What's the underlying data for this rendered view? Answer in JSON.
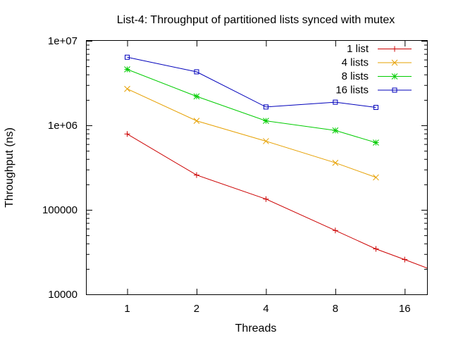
{
  "chart_data": {
    "type": "line",
    "title": "List-4: Throughput of partitioned lists synced with mutex",
    "xlabel": "Threads",
    "ylabel": "Throughput (ns)",
    "x_scale": "log2",
    "y_scale": "log10",
    "xlim": [
      0.667,
      20
    ],
    "ylim": [
      10000,
      10000000
    ],
    "x_ticks": [
      {
        "value": 1,
        "label": "1"
      },
      {
        "value": 2,
        "label": "2"
      },
      {
        "value": 4,
        "label": "4"
      },
      {
        "value": 8,
        "label": "8"
      },
      {
        "value": 16,
        "label": "16"
      }
    ],
    "y_ticks": [
      {
        "value": 10000,
        "label": "10000"
      },
      {
        "value": 100000,
        "label": "100000"
      },
      {
        "value": 1000000,
        "label": "1e+06"
      },
      {
        "value": 10000000,
        "label": "1e+07"
      }
    ],
    "legend_position": "top-right",
    "grid": false,
    "series": [
      {
        "name": "1 list",
        "color": "#cc0000",
        "marker": "plus",
        "points": [
          [
            1,
            790000
          ],
          [
            2,
            258000
          ],
          [
            4,
            134000
          ],
          [
            8,
            57000
          ],
          [
            12,
            34500
          ],
          [
            16,
            25800
          ],
          [
            20,
            20500
          ]
        ]
      },
      {
        "name": "4 lists",
        "color": "#e6a000",
        "marker": "cross",
        "points": [
          [
            1,
            2700000
          ],
          [
            2,
            1130000
          ],
          [
            4,
            650000
          ],
          [
            8,
            360000
          ],
          [
            12,
            242000
          ]
        ]
      },
      {
        "name": "8 lists",
        "color": "#00cc00",
        "marker": "star",
        "points": [
          [
            1,
            4600000
          ],
          [
            2,
            2200000
          ],
          [
            4,
            1130000
          ],
          [
            8,
            870000
          ],
          [
            12,
            625000
          ]
        ]
      },
      {
        "name": "16 lists",
        "color": "#0000bb",
        "marker": "square",
        "points": [
          [
            1,
            6400000
          ],
          [
            2,
            4300000
          ],
          [
            4,
            1650000
          ],
          [
            8,
            1880000
          ],
          [
            12,
            1630000
          ]
        ]
      }
    ]
  }
}
